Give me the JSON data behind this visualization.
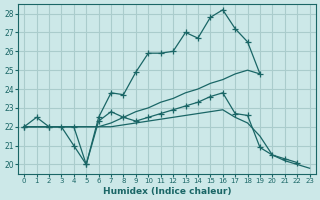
{
  "xlabel": "Humidex (Indice chaleur)",
  "bg_color": "#cce8e8",
  "grid_color": "#aacccc",
  "line_color": "#1a6666",
  "xlim": [
    -0.5,
    23.5
  ],
  "ylim": [
    19.5,
    28.5
  ],
  "xticks": [
    0,
    1,
    2,
    3,
    4,
    5,
    6,
    7,
    8,
    9,
    10,
    11,
    12,
    13,
    14,
    15,
    16,
    17,
    18,
    19,
    20,
    21,
    22,
    23
  ],
  "yticks": [
    20,
    21,
    22,
    23,
    24,
    25,
    26,
    27,
    28
  ],
  "line1_x": [
    0,
    1,
    2,
    3,
    4,
    5,
    6,
    7,
    8,
    9,
    10,
    11,
    12,
    13,
    14,
    15,
    16,
    17,
    18,
    19
  ],
  "line1_y": [
    22,
    22.5,
    22,
    22,
    21,
    20,
    22.5,
    23.8,
    23.7,
    24.9,
    25.9,
    25.9,
    26.0,
    27.0,
    26.7,
    27.8,
    28.2,
    27.2,
    26.5,
    24.8
  ],
  "line1_marker": true,
  "line2_x": [
    0,
    2,
    6,
    7,
    8,
    9,
    10,
    11,
    12,
    13,
    14,
    15,
    16,
    17,
    18,
    19
  ],
  "line2_y": [
    22,
    22,
    22,
    22.2,
    22.5,
    22.8,
    23.0,
    23.3,
    23.5,
    23.8,
    24.0,
    24.3,
    24.5,
    24.8,
    25.0,
    24.8
  ],
  "line2_marker": false,
  "line3_x": [
    0,
    2,
    4,
    5,
    6,
    7,
    8,
    9,
    10,
    11,
    12,
    13,
    14,
    15,
    16,
    17,
    18,
    19,
    20,
    21,
    22
  ],
  "line3_y": [
    22,
    22,
    22,
    20,
    22.3,
    22.8,
    22.5,
    22.3,
    22.5,
    22.7,
    22.9,
    23.1,
    23.3,
    23.6,
    23.8,
    22.7,
    22.6,
    20.9,
    20.5,
    20.3,
    20.1
  ],
  "line3_marker": true,
  "line4_x": [
    0,
    2,
    6,
    7,
    8,
    9,
    10,
    11,
    12,
    13,
    14,
    15,
    16,
    17,
    18,
    19,
    20,
    21,
    22,
    23
  ],
  "line4_y": [
    22,
    22,
    22,
    22,
    22.1,
    22.2,
    22.3,
    22.4,
    22.5,
    22.6,
    22.7,
    22.8,
    22.9,
    22.5,
    22.2,
    21.5,
    20.5,
    20.2,
    20.0,
    19.8
  ],
  "line4_marker": false
}
